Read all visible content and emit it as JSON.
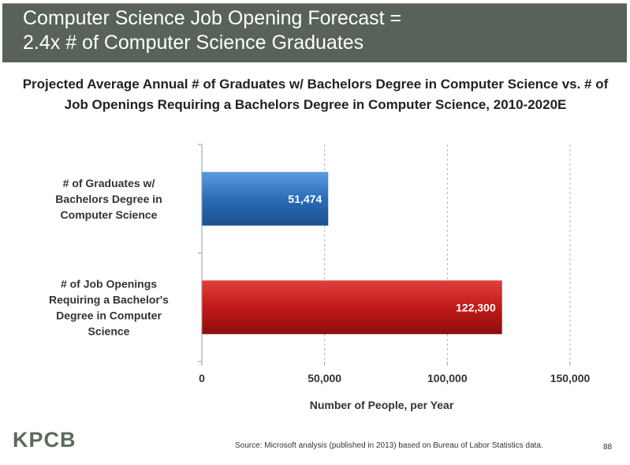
{
  "header": {
    "title": "Computer Science Job Opening Forecast =\n2.4x # of Computer Science Graduates"
  },
  "colors": {
    "header_bg": "#586259",
    "graduates_bar": "#2a6db8",
    "openings_bar": "#c21a1a"
  },
  "chart_data": {
    "type": "bar",
    "orientation": "horizontal",
    "title": "Projected Average Annual # of Graduates w/ Bachelors Degree in Computer Science vs. # of Job Openings Requiring a Bachelors Degree in Computer Science, 2010-2020E",
    "categories": [
      "# of Graduates w/\nBachelors Degree in\nComputer Science",
      "# of Job Openings\nRequiring a Bachelor's\nDegree in Computer\nScience"
    ],
    "values": [
      51474,
      122300
    ],
    "data_labels": [
      "51,474",
      "122,300"
    ],
    "xlabel": "Number of People, per Year",
    "ylabel": "",
    "xlim": [
      0,
      150000
    ],
    "xticks": [
      0,
      50000,
      100000,
      150000
    ],
    "xtick_labels": [
      "0",
      "50,000",
      "100,000",
      "150,000"
    ],
    "grid": "vertical dashed",
    "legend": "none"
  },
  "footer": {
    "logo": "KPCB",
    "source": "Source: Microsoft analysis (published in 2013) based on Bureau of Labor Statistics data.",
    "page_number": "88"
  }
}
